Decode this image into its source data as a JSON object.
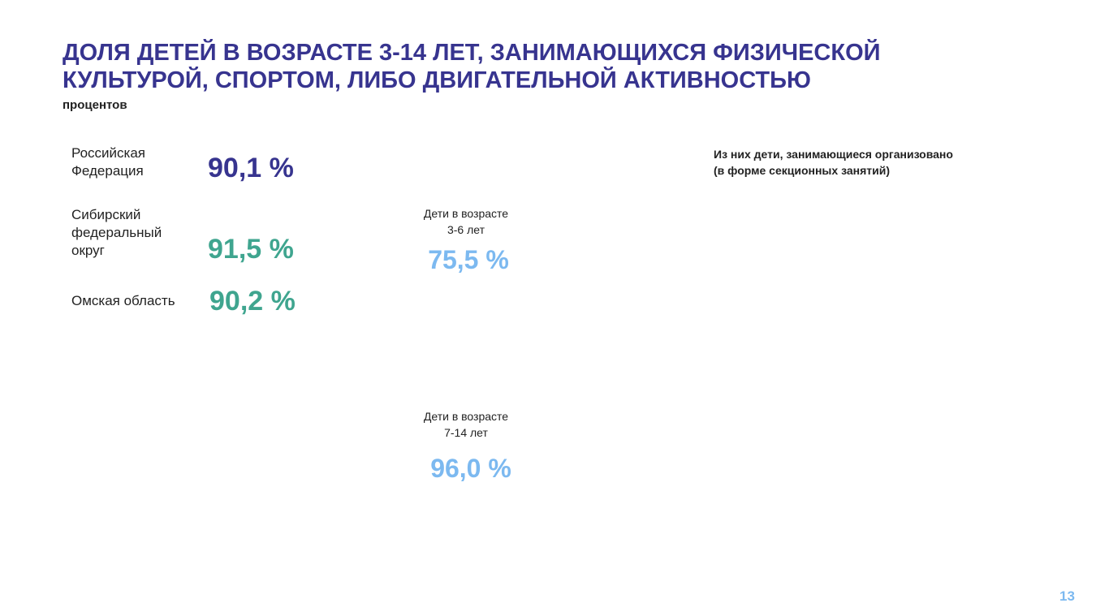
{
  "header": {
    "title_lines": [
      "ДОЛЯ ДЕТЕЙ В ВОЗРАСТЕ 3-14 ЛЕТ, ЗАНИМАЮЩИХСЯ ФИЗИЧЕСКОЙ",
      "КУЛЬТУРОЙ, СПОРТОМ, ЛИБО ДВИГАТЕЛЬНОЙ АКТИВНОСТЬЮ"
    ],
    "subtitle": "процентов"
  },
  "regions": [
    {
      "label": "Российская\nФедерация",
      "value": "90,1 %"
    },
    {
      "label": "Сибирский\nфедеральный\nокруг",
      "value": "91,5 %"
    },
    {
      "label": "Омская область",
      "value": "90,2 %"
    }
  ],
  "age_groups": [
    {
      "label": "Дети  в возрасте\n3-6 лет",
      "value": "75,5 %"
    },
    {
      "label": "Дети в возрасте\n7-14 лет",
      "value": "96,0 %"
    }
  ],
  "note": "Из них дети, занимающиеся организовано\n(в форме секционных занятий)",
  "page_number": "13"
}
